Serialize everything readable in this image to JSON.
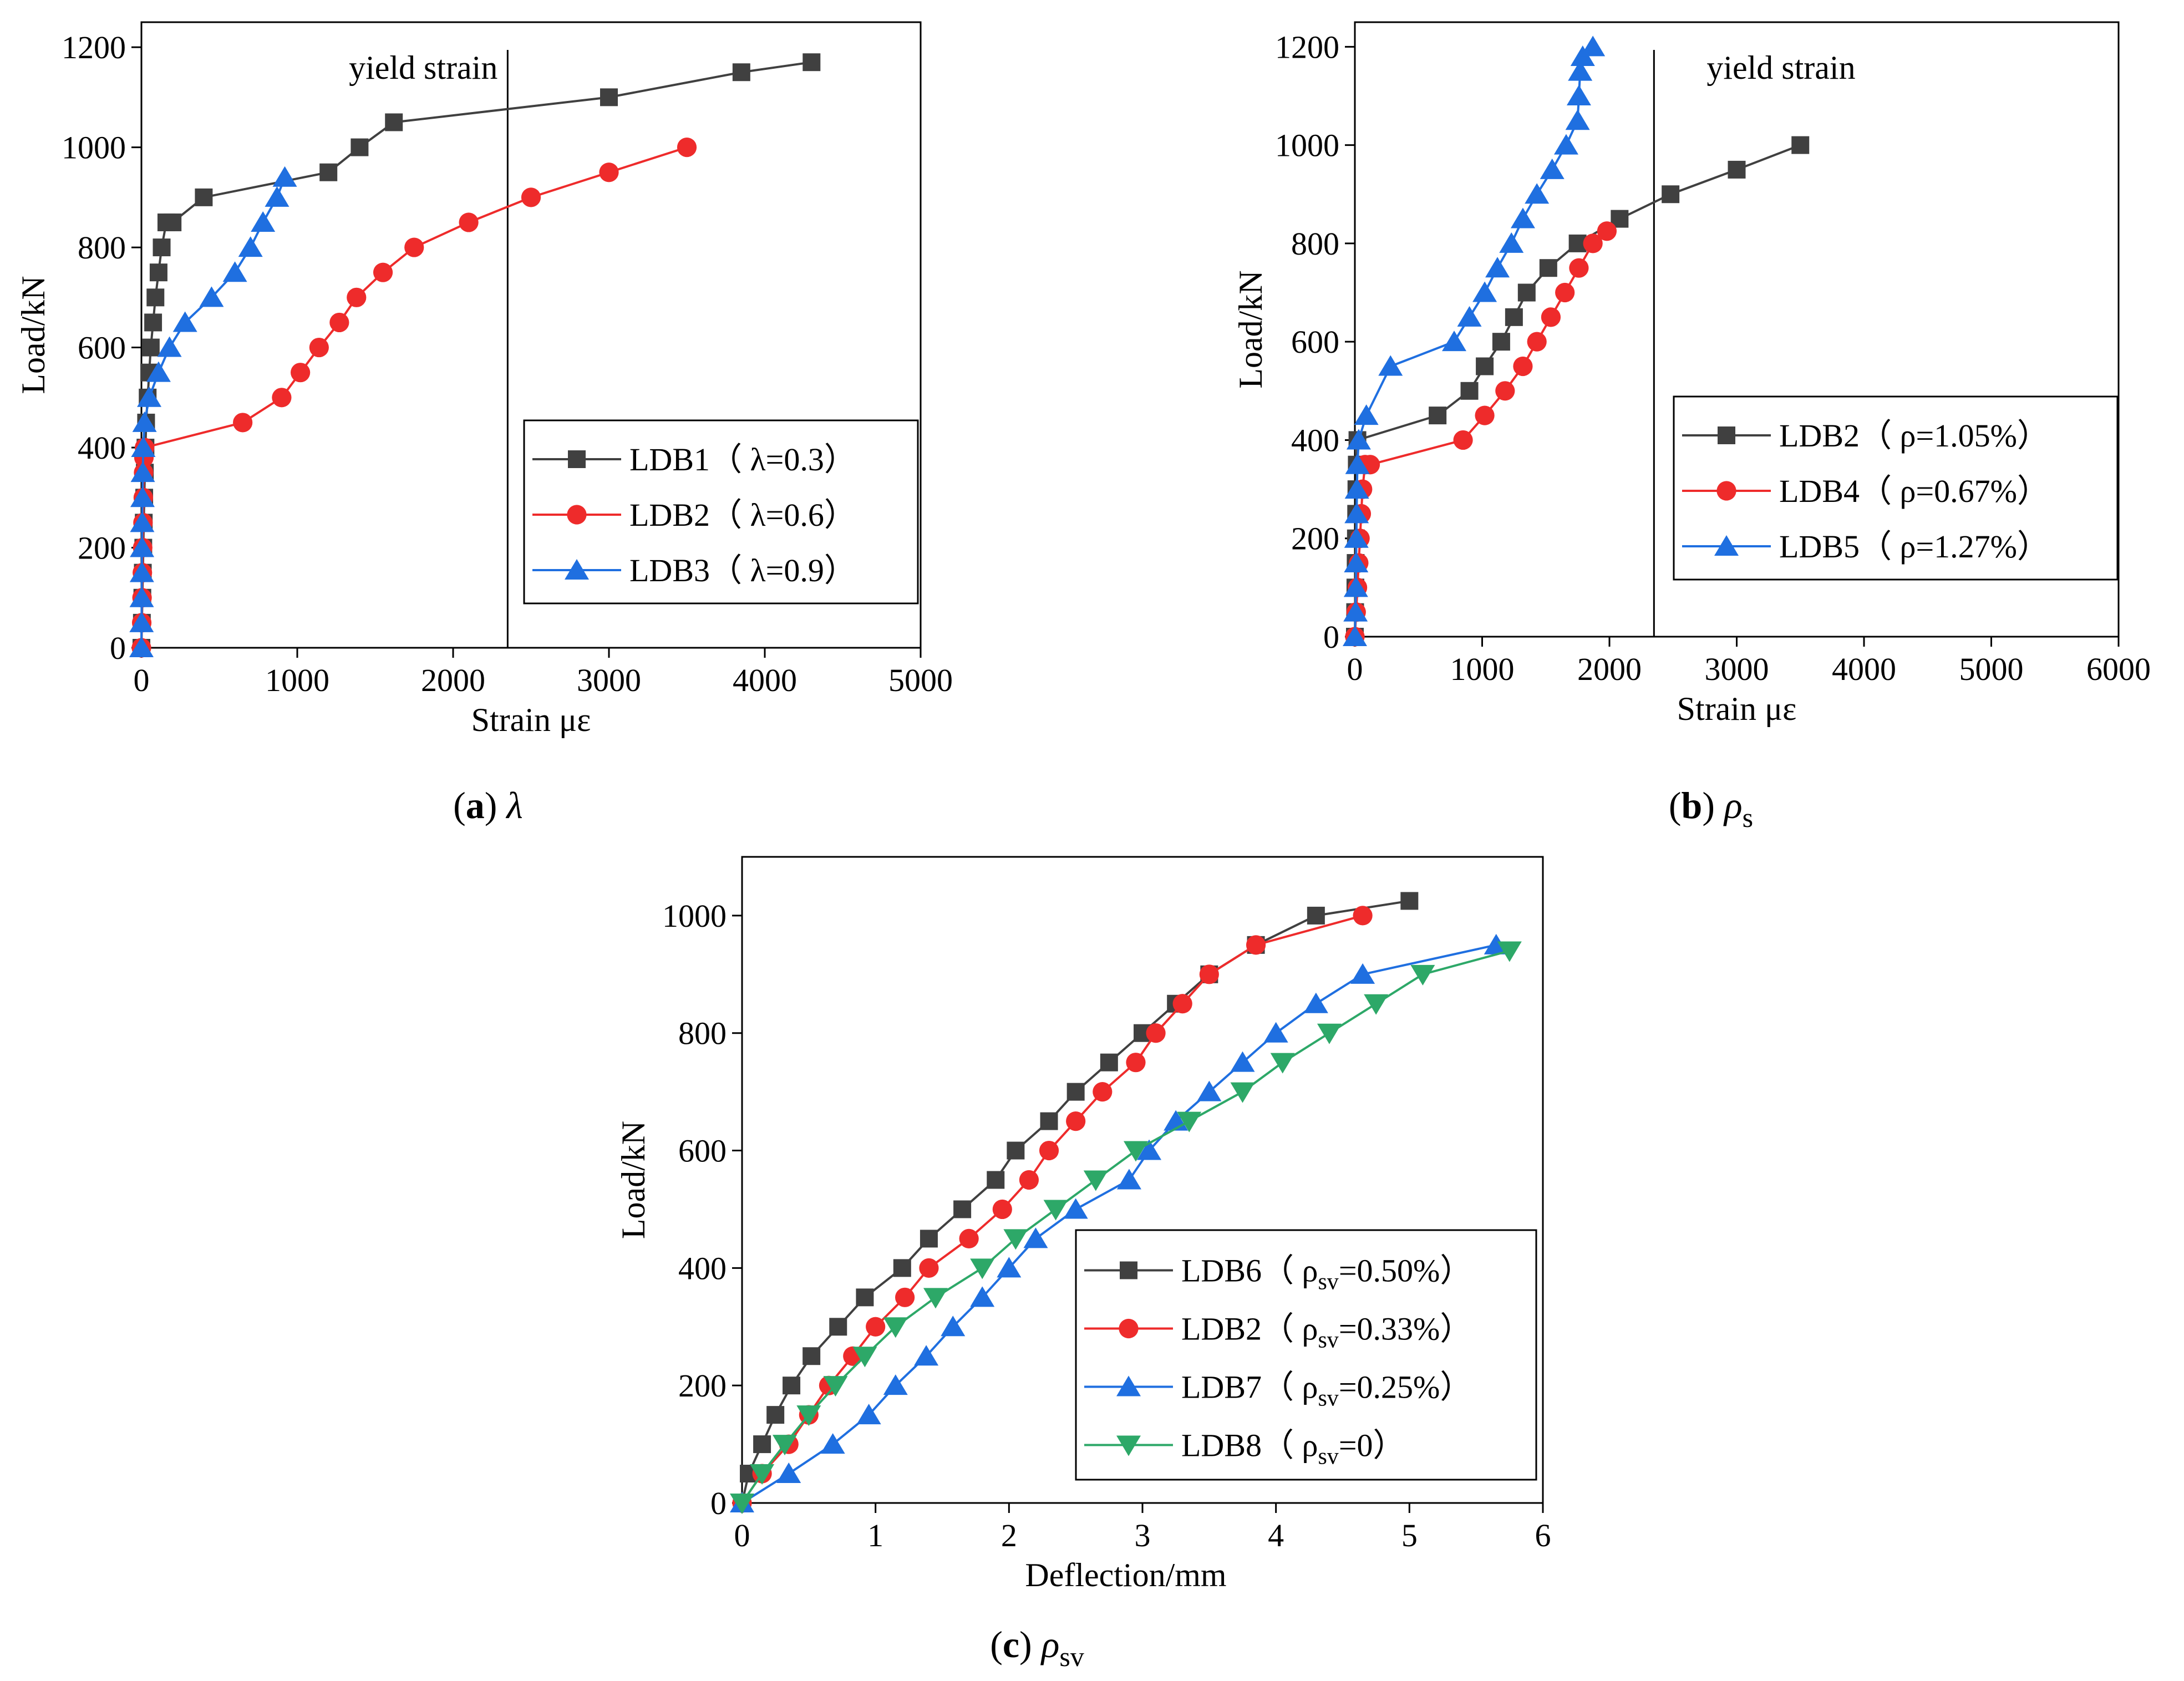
{
  "chart_data": [
    {
      "type": "line",
      "caption": {
        "label": "(a)",
        "symbol": "λ"
      },
      "xlabel": "Strain με",
      "ylabel": "Load/kN",
      "xlim": [
        0,
        5000
      ],
      "ylim": [
        0,
        1250
      ],
      "xticks": [
        "0",
        "1000",
        "2000",
        "3000",
        "4000",
        "5000"
      ],
      "yticks": [
        "0",
        "200",
        "400",
        "600",
        "800",
        "1000",
        "1200"
      ],
      "annotation": {
        "text": "yield strain",
        "x": 2350
      },
      "legend_position": "right",
      "series": [
        {
          "name": "LDB1（ λ=0.3）",
          "color": "#404040",
          "marker": "square",
          "x": [
            0,
            3,
            6,
            9,
            12,
            15,
            18,
            22,
            26,
            30,
            40,
            50,
            60,
            75,
            90,
            110,
            130,
            160,
            200,
            400,
            1200,
            1400,
            1620,
            3000,
            3850,
            4300
          ],
          "y": [
            0,
            50,
            100,
            150,
            200,
            250,
            300,
            350,
            400,
            450,
            500,
            550,
            600,
            650,
            700,
            750,
            800,
            850,
            850,
            900,
            950,
            1000,
            1050,
            1100,
            1150,
            1170
          ]
        },
        {
          "name": "LDB2（ λ=0.6）",
          "color": "#ee2b2b",
          "marker": "circle",
          "x": [
            0,
            2,
            4,
            6,
            8,
            10,
            12,
            14,
            16,
            20,
            650,
            900,
            1020,
            1140,
            1270,
            1380,
            1550,
            1750,
            2100,
            2500,
            3000,
            3500
          ],
          "y": [
            0,
            50,
            100,
            150,
            200,
            250,
            300,
            350,
            380,
            400,
            450,
            500,
            550,
            600,
            650,
            700,
            750,
            800,
            850,
            900,
            950,
            1000
          ],
          "note_start": [
            0,
            0
          ]
        },
        {
          "name": "LDB3（ λ=0.9）",
          "color": "#1f6fe0",
          "marker": "triangle-up",
          "x": [
            0,
            1,
            2,
            3,
            4,
            5,
            7,
            9,
            12,
            20,
            50,
            110,
            180,
            280,
            450,
            600,
            700,
            780,
            870,
            920
          ],
          "y": [
            0,
            50,
            100,
            150,
            200,
            250,
            300,
            350,
            400,
            450,
            500,
            550,
            600,
            650,
            700,
            750,
            800,
            850,
            900,
            940
          ]
        }
      ]
    },
    {
      "type": "line",
      "caption": {
        "label": "(b)",
        "symbol": "ρ",
        "sub": "s"
      },
      "xlabel": "Strain  με",
      "ylabel": "Load/kN",
      "xlim": [
        0,
        6000
      ],
      "ylim": [
        0,
        1250
      ],
      "xticks": [
        "0",
        "1000",
        "2000",
        "3000",
        "4000",
        "5000",
        "6000"
      ],
      "yticks": [
        "0",
        "200",
        "400",
        "600",
        "800",
        "1000",
        "1200"
      ],
      "annotation": {
        "text": "yield strain",
        "x": 2350
      },
      "legend_position": "right",
      "series": [
        {
          "name": "LDB2（ ρ=1.05%）",
          "color": "#404040",
          "marker": "square",
          "x": [
            0,
            2,
            4,
            6,
            8,
            10,
            12,
            15,
            20,
            650,
            900,
            1020,
            1150,
            1250,
            1350,
            1520,
            1750,
            2080,
            2480,
            3000,
            3500
          ],
          "y": [
            0,
            50,
            100,
            150,
            200,
            250,
            300,
            350,
            400,
            450,
            500,
            550,
            600,
            650,
            700,
            750,
            800,
            850,
            900,
            950,
            1000
          ]
        },
        {
          "name": "LDB4（ ρ=0.67%）",
          "color": "#ee2b2b",
          "marker": "circle",
          "x": [
            0,
            10,
            20,
            30,
            40,
            50,
            60,
            80,
            120,
            850,
            1020,
            1180,
            1320,
            1430,
            1540,
            1650,
            1760,
            1870,
            1980
          ],
          "y": [
            0,
            50,
            100,
            150,
            200,
            250,
            300,
            350,
            350,
            400,
            450,
            500,
            550,
            600,
            650,
            700,
            750,
            800,
            825
          ]
        },
        {
          "name": "LDB5（ ρ=1.27%）",
          "color": "#1f6fe0",
          "marker": "triangle-up",
          "x": [
            0,
            5,
            8,
            10,
            12,
            14,
            16,
            20,
            30,
            90,
            280,
            780,
            900,
            1020,
            1120,
            1230,
            1320,
            1430,
            1550,
            1660,
            1750,
            1760,
            1770,
            1790,
            1870
          ],
          "y": [
            0,
            50,
            100,
            150,
            200,
            250,
            300,
            350,
            400,
            450,
            550,
            600,
            650,
            700,
            750,
            800,
            850,
            900,
            950,
            1000,
            1050,
            1100,
            1150,
            1180,
            1200
          ]
        }
      ]
    },
    {
      "type": "line",
      "caption": {
        "label": "(c)",
        "symbol": "ρ",
        "sub": "sv"
      },
      "xlabel": "Deflection/mm",
      "ylabel": "Load/kN",
      "xlim": [
        0,
        6
      ],
      "ylim": [
        0,
        1100
      ],
      "xticks": [
        "0",
        "1",
        "2",
        "3",
        "4",
        "5",
        "6"
      ],
      "yticks": [
        "0",
        "200",
        "400",
        "600",
        "800",
        "1000"
      ],
      "legend_position": "bottom-right",
      "series": [
        {
          "name": "LDB6（ ρ",
          "sub": "sv",
          "tail": "=0.50%）",
          "color": "#404040",
          "marker": "square",
          "x": [
            0,
            0.05,
            0.15,
            0.25,
            0.37,
            0.52,
            0.72,
            0.92,
            1.2,
            1.4,
            1.65,
            1.9,
            2.05,
            2.3,
            2.5,
            2.75,
            3.0,
            3.25,
            3.5,
            3.85,
            4.3,
            5.0
          ],
          "y": [
            0,
            50,
            100,
            150,
            200,
            250,
            300,
            350,
            400,
            450,
            500,
            550,
            600,
            650,
            700,
            750,
            800,
            850,
            900,
            950,
            1000,
            1025
          ]
        },
        {
          "name": "LDB2（ ρ",
          "sub": "sv",
          "tail": "=0.33%）",
          "color": "#ee2b2b",
          "marker": "circle",
          "x": [
            0,
            0.15,
            0.35,
            0.5,
            0.65,
            0.83,
            1.0,
            1.22,
            1.4,
            1.7,
            1.95,
            2.15,
            2.3,
            2.5,
            2.7,
            2.95,
            3.1,
            3.3,
            3.5,
            3.85,
            4.65
          ],
          "y": [
            0,
            50,
            100,
            150,
            200,
            250,
            300,
            350,
            400,
            450,
            500,
            550,
            600,
            650,
            700,
            750,
            800,
            850,
            900,
            950,
            1000
          ]
        },
        {
          "name": "LDB7（ ρ",
          "sub": "sv",
          "tail": "=0.25%）",
          "color": "#1f6fe0",
          "marker": "triangle-up",
          "x": [
            0,
            0.35,
            0.68,
            0.95,
            1.15,
            1.38,
            1.58,
            1.8,
            2.0,
            2.2,
            2.5,
            2.9,
            3.05,
            3.25,
            3.5,
            3.75,
            4.0,
            4.3,
            4.65,
            5.65
          ],
          "y": [
            0,
            50,
            100,
            150,
            200,
            250,
            300,
            350,
            400,
            450,
            500,
            550,
            600,
            650,
            700,
            750,
            800,
            850,
            900,
            950
          ]
        },
        {
          "name": "LDB8（ ρ",
          "sub": "sv",
          "tail": "=0）",
          "color": "#2da868",
          "marker": "triangle-down",
          "x": [
            0,
            0.15,
            0.32,
            0.5,
            0.7,
            0.92,
            1.15,
            1.45,
            1.8,
            2.05,
            2.35,
            2.65,
            2.95,
            3.35,
            3.75,
            4.05,
            4.4,
            4.75,
            5.1,
            5.75
          ],
          "y": [
            0,
            50,
            100,
            150,
            200,
            250,
            300,
            350,
            400,
            450,
            500,
            550,
            600,
            650,
            700,
            750,
            800,
            850,
            900,
            940
          ]
        }
      ]
    }
  ]
}
